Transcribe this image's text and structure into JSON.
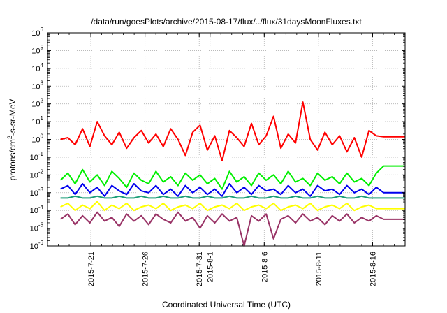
{
  "chart_data": {
    "type": "line",
    "title": "/data/run/goesPlots/archive/2015-08-17/flux/../flux/31daysMoonFluxes.txt",
    "xlabel": "Coordinated Universal Time (UTC)",
    "ylabel_parts": [
      "protons/cm",
      "2",
      "-s-sr-MeV"
    ],
    "yscale": "log",
    "ylim_exponents": [
      -6,
      6
    ],
    "y_tick_base": "10",
    "y_tick_exponents": [
      "-6",
      "-5",
      "-4",
      "-3",
      "-2",
      "-1",
      "0",
      "1",
      "2",
      "3",
      "4",
      "5",
      "6"
    ],
    "x_range_days": [
      "2015-07-17",
      "2015-08-19"
    ],
    "x_tick_labels": [
      "2015-7-21",
      "2015-7-26",
      "2015-7-31",
      "2015-8-1",
      "2015-8-6",
      "2015-8-11",
      "2015-8-16"
    ],
    "x_tick_dates": [
      "2015-07-21",
      "2015-07-26",
      "2015-07-31",
      "2015-08-01",
      "2015-08-06",
      "2015-08-11",
      "2015-08-16"
    ],
    "grid": true,
    "series": [
      {
        "color": "#ff0000",
        "values_log10": [
          0.0,
          0.1,
          -0.3,
          0.6,
          -0.4,
          1.0,
          0.2,
          -0.3,
          0.4,
          -0.5,
          0.1,
          0.5,
          -0.2,
          0.3,
          -0.4,
          0.6,
          0.0,
          -0.9,
          0.4,
          0.8,
          -0.6,
          0.2,
          -1.2,
          0.5,
          0.1,
          -0.4,
          0.9,
          -0.3,
          0.2,
          1.3,
          -0.5,
          0.3,
          -0.2,
          2.1,
          0.0,
          -0.6,
          0.4,
          -0.3,
          0.2,
          -0.7,
          0.1,
          -1.0,
          0.5,
          0.2,
          0.15,
          0.15
        ]
      },
      {
        "color": "#00ee00",
        "values_log10": [
          -2.3,
          -1.9,
          -2.5,
          -1.7,
          -2.4,
          -2.0,
          -2.6,
          -1.8,
          -2.2,
          -2.7,
          -1.9,
          -2.3,
          -2.5,
          -1.8,
          -2.4,
          -2.1,
          -2.6,
          -1.9,
          -2.3,
          -2.0,
          -2.5,
          -2.2,
          -2.8,
          -1.8,
          -2.4,
          -2.1,
          -2.6,
          -1.9,
          -2.3,
          -2.0,
          -2.5,
          -1.8,
          -2.4,
          -2.2,
          -2.6,
          -1.9,
          -2.3,
          -2.1,
          -2.5,
          -1.9,
          -2.4,
          -2.2,
          -2.6,
          -1.9,
          -1.5,
          -1.5
        ]
      },
      {
        "color": "#0000ee",
        "values_log10": [
          -2.8,
          -2.6,
          -3.1,
          -2.5,
          -3.0,
          -2.7,
          -3.2,
          -2.6,
          -2.9,
          -3.1,
          -2.5,
          -2.9,
          -3.0,
          -2.6,
          -3.1,
          -2.8,
          -3.2,
          -2.6,
          -3.0,
          -2.7,
          -3.1,
          -2.8,
          -3.2,
          -2.5,
          -3.0,
          -2.7,
          -3.1,
          -2.6,
          -2.9,
          -2.8,
          -3.1,
          -2.6,
          -3.0,
          -2.8,
          -3.2,
          -2.6,
          -2.9,
          -2.8,
          -3.1,
          -2.6,
          -3.0,
          -2.8,
          -3.1,
          -2.7,
          -3.0,
          -3.0
        ]
      },
      {
        "color": "#1b9e77",
        "values_log10": [
          -3.3,
          -3.3,
          -3.2,
          -3.3,
          -3.3,
          -3.2,
          -3.3,
          -3.3,
          -3.2,
          -3.3,
          -3.3,
          -3.2,
          -3.3,
          -3.3,
          -3.2,
          -3.3,
          -3.3,
          -3.2,
          -3.3,
          -3.3,
          -3.2,
          -3.3,
          -3.3,
          -3.2,
          -3.3,
          -3.3,
          -3.2,
          -3.3,
          -3.3,
          -3.2,
          -3.3,
          -3.3,
          -3.2,
          -3.3,
          -3.3,
          -3.2,
          -3.3,
          -3.3,
          -3.2,
          -3.3,
          -3.3,
          -3.2,
          -3.3,
          -3.3,
          -3.3,
          -3.3
        ]
      },
      {
        "color": "#ffff00",
        "values_log10": [
          -3.8,
          -3.6,
          -4.0,
          -3.7,
          -3.9,
          -3.5,
          -4.0,
          -3.7,
          -3.9,
          -3.6,
          -4.0,
          -3.8,
          -3.7,
          -3.9,
          -3.6,
          -4.0,
          -3.8,
          -3.7,
          -3.9,
          -3.6,
          -4.0,
          -3.8,
          -3.7,
          -3.9,
          -3.6,
          -4.0,
          -3.8,
          -3.7,
          -3.9,
          -3.6,
          -4.0,
          -3.8,
          -3.7,
          -3.9,
          -3.6,
          -4.0,
          -3.8,
          -3.7,
          -3.9,
          -3.6,
          -4.0,
          -3.8,
          -3.7,
          -3.9,
          -3.9,
          -3.9
        ]
      },
      {
        "color": "#993366",
        "values_log10": [
          -4.5,
          -4.2,
          -4.8,
          -4.3,
          -4.7,
          -4.1,
          -4.6,
          -4.4,
          -4.9,
          -4.2,
          -4.6,
          -4.3,
          -4.8,
          -4.2,
          -4.5,
          -4.7,
          -4.1,
          -4.6,
          -4.4,
          -5.0,
          -4.3,
          -4.7,
          -4.2,
          -4.6,
          -4.4,
          -6.0,
          -4.3,
          -4.6,
          -4.2,
          -5.6,
          -4.5,
          -4.3,
          -4.7,
          -4.2,
          -4.6,
          -4.4,
          -4.8,
          -4.3,
          -4.6,
          -4.2,
          -4.7,
          -4.4,
          -4.6,
          -4.3,
          -4.5,
          -4.5
        ]
      }
    ]
  }
}
